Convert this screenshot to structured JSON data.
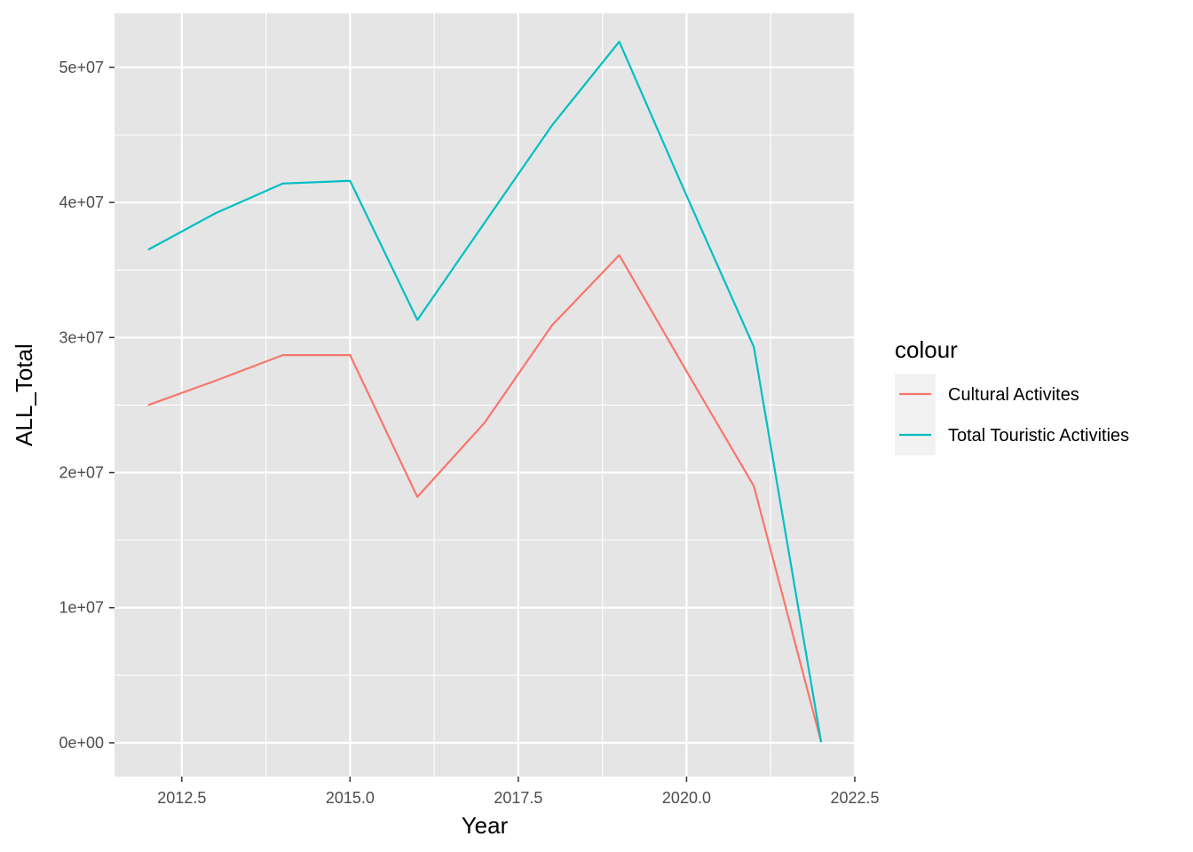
{
  "chart_data": {
    "type": "line",
    "xlabel": "Year",
    "ylabel": "ALL_Total",
    "xlim": [
      2011.5,
      2022.5
    ],
    "ylim": [
      -2500000,
      54000000
    ],
    "x_ticks": [
      2012.5,
      2015.0,
      2017.5,
      2020.0,
      2022.5
    ],
    "x_tick_labels": [
      "2012.5",
      "2015.0",
      "2017.5",
      "2020.0",
      "2022.5"
    ],
    "y_ticks": [
      0,
      10000000,
      20000000,
      30000000,
      40000000,
      50000000
    ],
    "y_tick_labels": [
      "0e+00",
      "1e+07",
      "2e+07",
      "3e+07",
      "4e+07",
      "5e+07"
    ],
    "grid": true,
    "background": "#e5e5e5",
    "legend": {
      "title": "colour",
      "position": "right"
    },
    "series": [
      {
        "name": "Cultural Activites",
        "color": "#f8766d",
        "x": [
          2012,
          2013,
          2014,
          2015,
          2016,
          2017,
          2018,
          2019,
          2020,
          2021,
          2022
        ],
        "values": [
          25000000,
          26800000,
          28700000,
          28700000,
          18200000,
          23700000,
          30900000,
          36100000,
          27500000,
          19000000,
          50000
        ]
      },
      {
        "name": "Total Touristic Activities",
        "color": "#00bfc4",
        "x": [
          2012,
          2013,
          2014,
          2015,
          2016,
          2017,
          2018,
          2019,
          2020,
          2021,
          2022
        ],
        "values": [
          36500000,
          39200000,
          41400000,
          41600000,
          31300000,
          38500000,
          45700000,
          51900000,
          40500000,
          29300000,
          50000
        ]
      }
    ]
  }
}
